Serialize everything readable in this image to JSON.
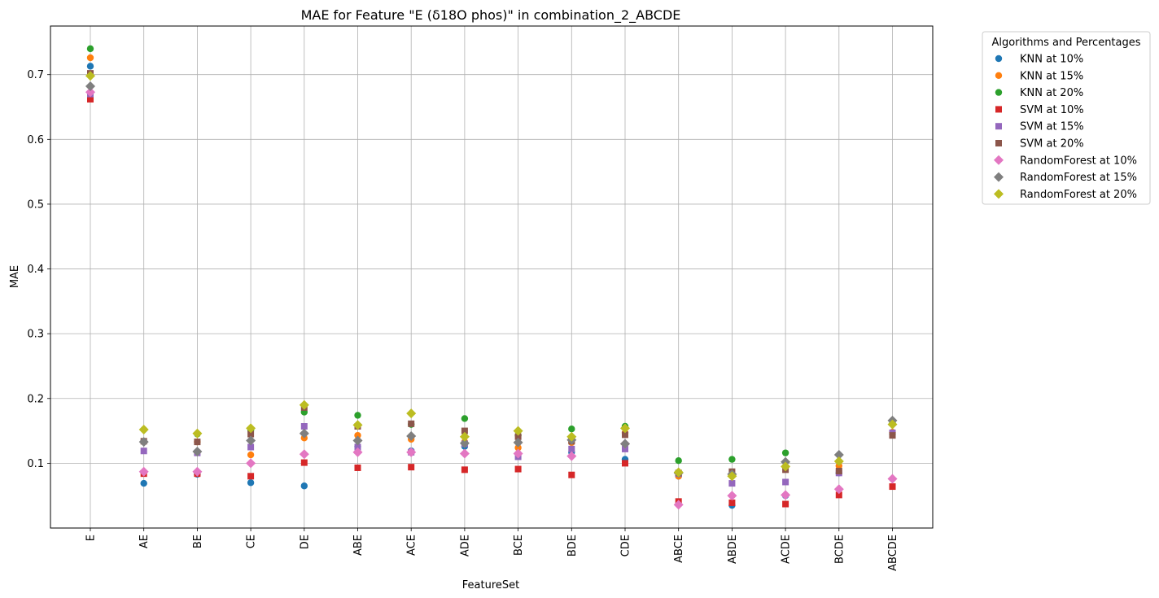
{
  "chart_data": {
    "type": "scatter",
    "title": "MAE for Feature \"E (δ18O phos)\" in combination_2_ABCDE",
    "xlabel": "FeatureSet",
    "ylabel": "MAE",
    "categories": [
      "E",
      "AE",
      "BE",
      "CE",
      "DE",
      "ABE",
      "ACE",
      "ADE",
      "BCE",
      "BDE",
      "CDE",
      "ABCE",
      "ABDE",
      "ACDE",
      "BCDE",
      "ABCDE"
    ],
    "ylim": [
      0.0,
      0.775
    ],
    "yticks": [
      0.1,
      0.2,
      0.3,
      0.4,
      0.5,
      0.6,
      0.7
    ],
    "ytick_labels": [
      "0.1",
      "0.2",
      "0.3",
      "0.4",
      "0.5",
      "0.6",
      "0.7"
    ],
    "grid": true,
    "legend": {
      "title": "Algorithms and Percentages",
      "placement": "outside-top-right"
    },
    "series": [
      {
        "name": "KNN at 10%",
        "marker": "circle",
        "color": "#1f77b4",
        "values": [
          0.713,
          0.069,
          0.083,
          0.07,
          0.065,
          0.126,
          0.119,
          0.126,
          0.115,
          0.117,
          0.106,
          0.08,
          0.035,
          0.05,
          0.085,
          0.145
        ]
      },
      {
        "name": "KNN at 15%",
        "marker": "circle",
        "color": "#ff7f0e",
        "values": [
          0.726,
          0.133,
          0.133,
          0.113,
          0.139,
          0.143,
          0.137,
          0.133,
          0.124,
          0.132,
          0.147,
          0.08,
          0.083,
          0.095,
          0.096,
          0.148
        ]
      },
      {
        "name": "KNN at 20%",
        "marker": "circle",
        "color": "#2ca02c",
        "values": [
          0.74,
          0.152,
          0.145,
          0.151,
          0.179,
          0.174,
          0.16,
          0.169,
          0.143,
          0.153,
          0.157,
          0.104,
          0.106,
          0.116,
          0.103,
          0.162
        ]
      },
      {
        "name": "SVM at 10%",
        "marker": "square",
        "color": "#d62728",
        "values": [
          0.662,
          0.084,
          0.084,
          0.08,
          0.101,
          0.093,
          0.094,
          0.09,
          0.091,
          0.082,
          0.1,
          0.041,
          0.039,
          0.037,
          0.051,
          0.064
        ]
      },
      {
        "name": "SVM at 15%",
        "marker": "square",
        "color": "#9467bd",
        "values": [
          0.67,
          0.119,
          0.116,
          0.125,
          0.157,
          0.125,
          0.117,
          0.13,
          0.11,
          0.122,
          0.122,
          0.084,
          0.069,
          0.071,
          0.085,
          0.147
        ]
      },
      {
        "name": "SVM at 20%",
        "marker": "square",
        "color": "#8c564b",
        "values": [
          0.702,
          0.134,
          0.133,
          0.145,
          0.186,
          0.157,
          0.161,
          0.15,
          0.141,
          0.134,
          0.144,
          0.085,
          0.087,
          0.09,
          0.088,
          0.143
        ]
      },
      {
        "name": "RandomForest at 10%",
        "marker": "diamond",
        "color": "#e377c2",
        "values": [
          0.673,
          0.087,
          0.087,
          0.1,
          0.114,
          0.117,
          0.117,
          0.115,
          0.115,
          0.111,
          0.13,
          0.036,
          0.05,
          0.051,
          0.06,
          0.076
        ]
      },
      {
        "name": "RandomForest at 15%",
        "marker": "diamond",
        "color": "#7f7f7f",
        "values": [
          0.682,
          0.133,
          0.118,
          0.135,
          0.146,
          0.135,
          0.142,
          0.131,
          0.132,
          0.136,
          0.13,
          0.085,
          0.083,
          0.102,
          0.113,
          0.166
        ]
      },
      {
        "name": "RandomForest at 20%",
        "marker": "diamond",
        "color": "#bcbd22",
        "values": [
          0.698,
          0.152,
          0.146,
          0.154,
          0.19,
          0.159,
          0.177,
          0.141,
          0.15,
          0.141,
          0.154,
          0.086,
          0.08,
          0.095,
          0.103,
          0.16
        ]
      }
    ]
  }
}
